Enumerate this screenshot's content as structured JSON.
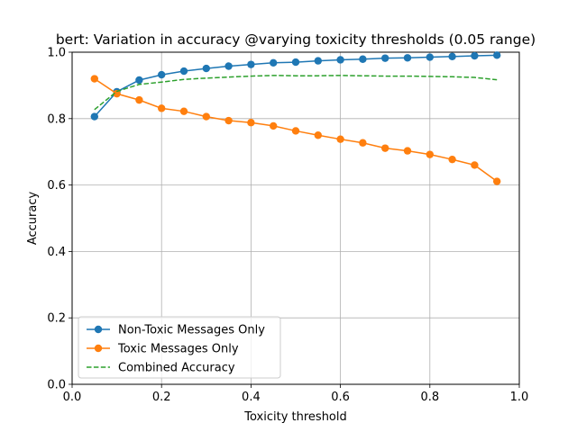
{
  "chart_data": {
    "type": "line",
    "title": "bert: Variation in accuracy @varying toxicity thresholds (0.05 range)",
    "xlabel": "Toxicity threshold",
    "ylabel": "Accuracy",
    "xlim": [
      0.0,
      1.0
    ],
    "ylim": [
      0.0,
      1.0
    ],
    "xticks": [
      "0.0",
      "0.2",
      "0.4",
      "0.6",
      "0.8",
      "1.0"
    ],
    "yticks": [
      "0.0",
      "0.2",
      "0.4",
      "0.6",
      "0.8",
      "1.0"
    ],
    "grid": true,
    "legend_position": "lower-left",
    "x": [
      0.05,
      0.1,
      0.15,
      0.2,
      0.25,
      0.3,
      0.35,
      0.4,
      0.45,
      0.5,
      0.55,
      0.6,
      0.65,
      0.7,
      0.75,
      0.8,
      0.85,
      0.9,
      0.95
    ],
    "series": [
      {
        "name": "Non-Toxic Messages Only",
        "color": "#1f77b4",
        "style": "solid-marker",
        "values": [
          0.806,
          0.881,
          0.916,
          0.932,
          0.943,
          0.951,
          0.958,
          0.963,
          0.968,
          0.97,
          0.974,
          0.977,
          0.979,
          0.982,
          0.983,
          0.985,
          0.987,
          0.989,
          0.991
        ]
      },
      {
        "name": "Toxic Messages Only",
        "color": "#ff7f0e",
        "style": "solid-marker",
        "values": [
          0.92,
          0.875,
          0.856,
          0.831,
          0.822,
          0.806,
          0.794,
          0.788,
          0.778,
          0.763,
          0.75,
          0.738,
          0.727,
          0.711,
          0.703,
          0.692,
          0.677,
          0.66,
          0.611
        ]
      },
      {
        "name": "Combined Accuracy",
        "color": "#2ca02c",
        "style": "dashed",
        "values": [
          0.827,
          0.882,
          0.903,
          0.91,
          0.918,
          0.922,
          0.925,
          0.928,
          0.93,
          0.929,
          0.929,
          0.93,
          0.929,
          0.928,
          0.928,
          0.927,
          0.926,
          0.924,
          0.917
        ]
      }
    ]
  }
}
